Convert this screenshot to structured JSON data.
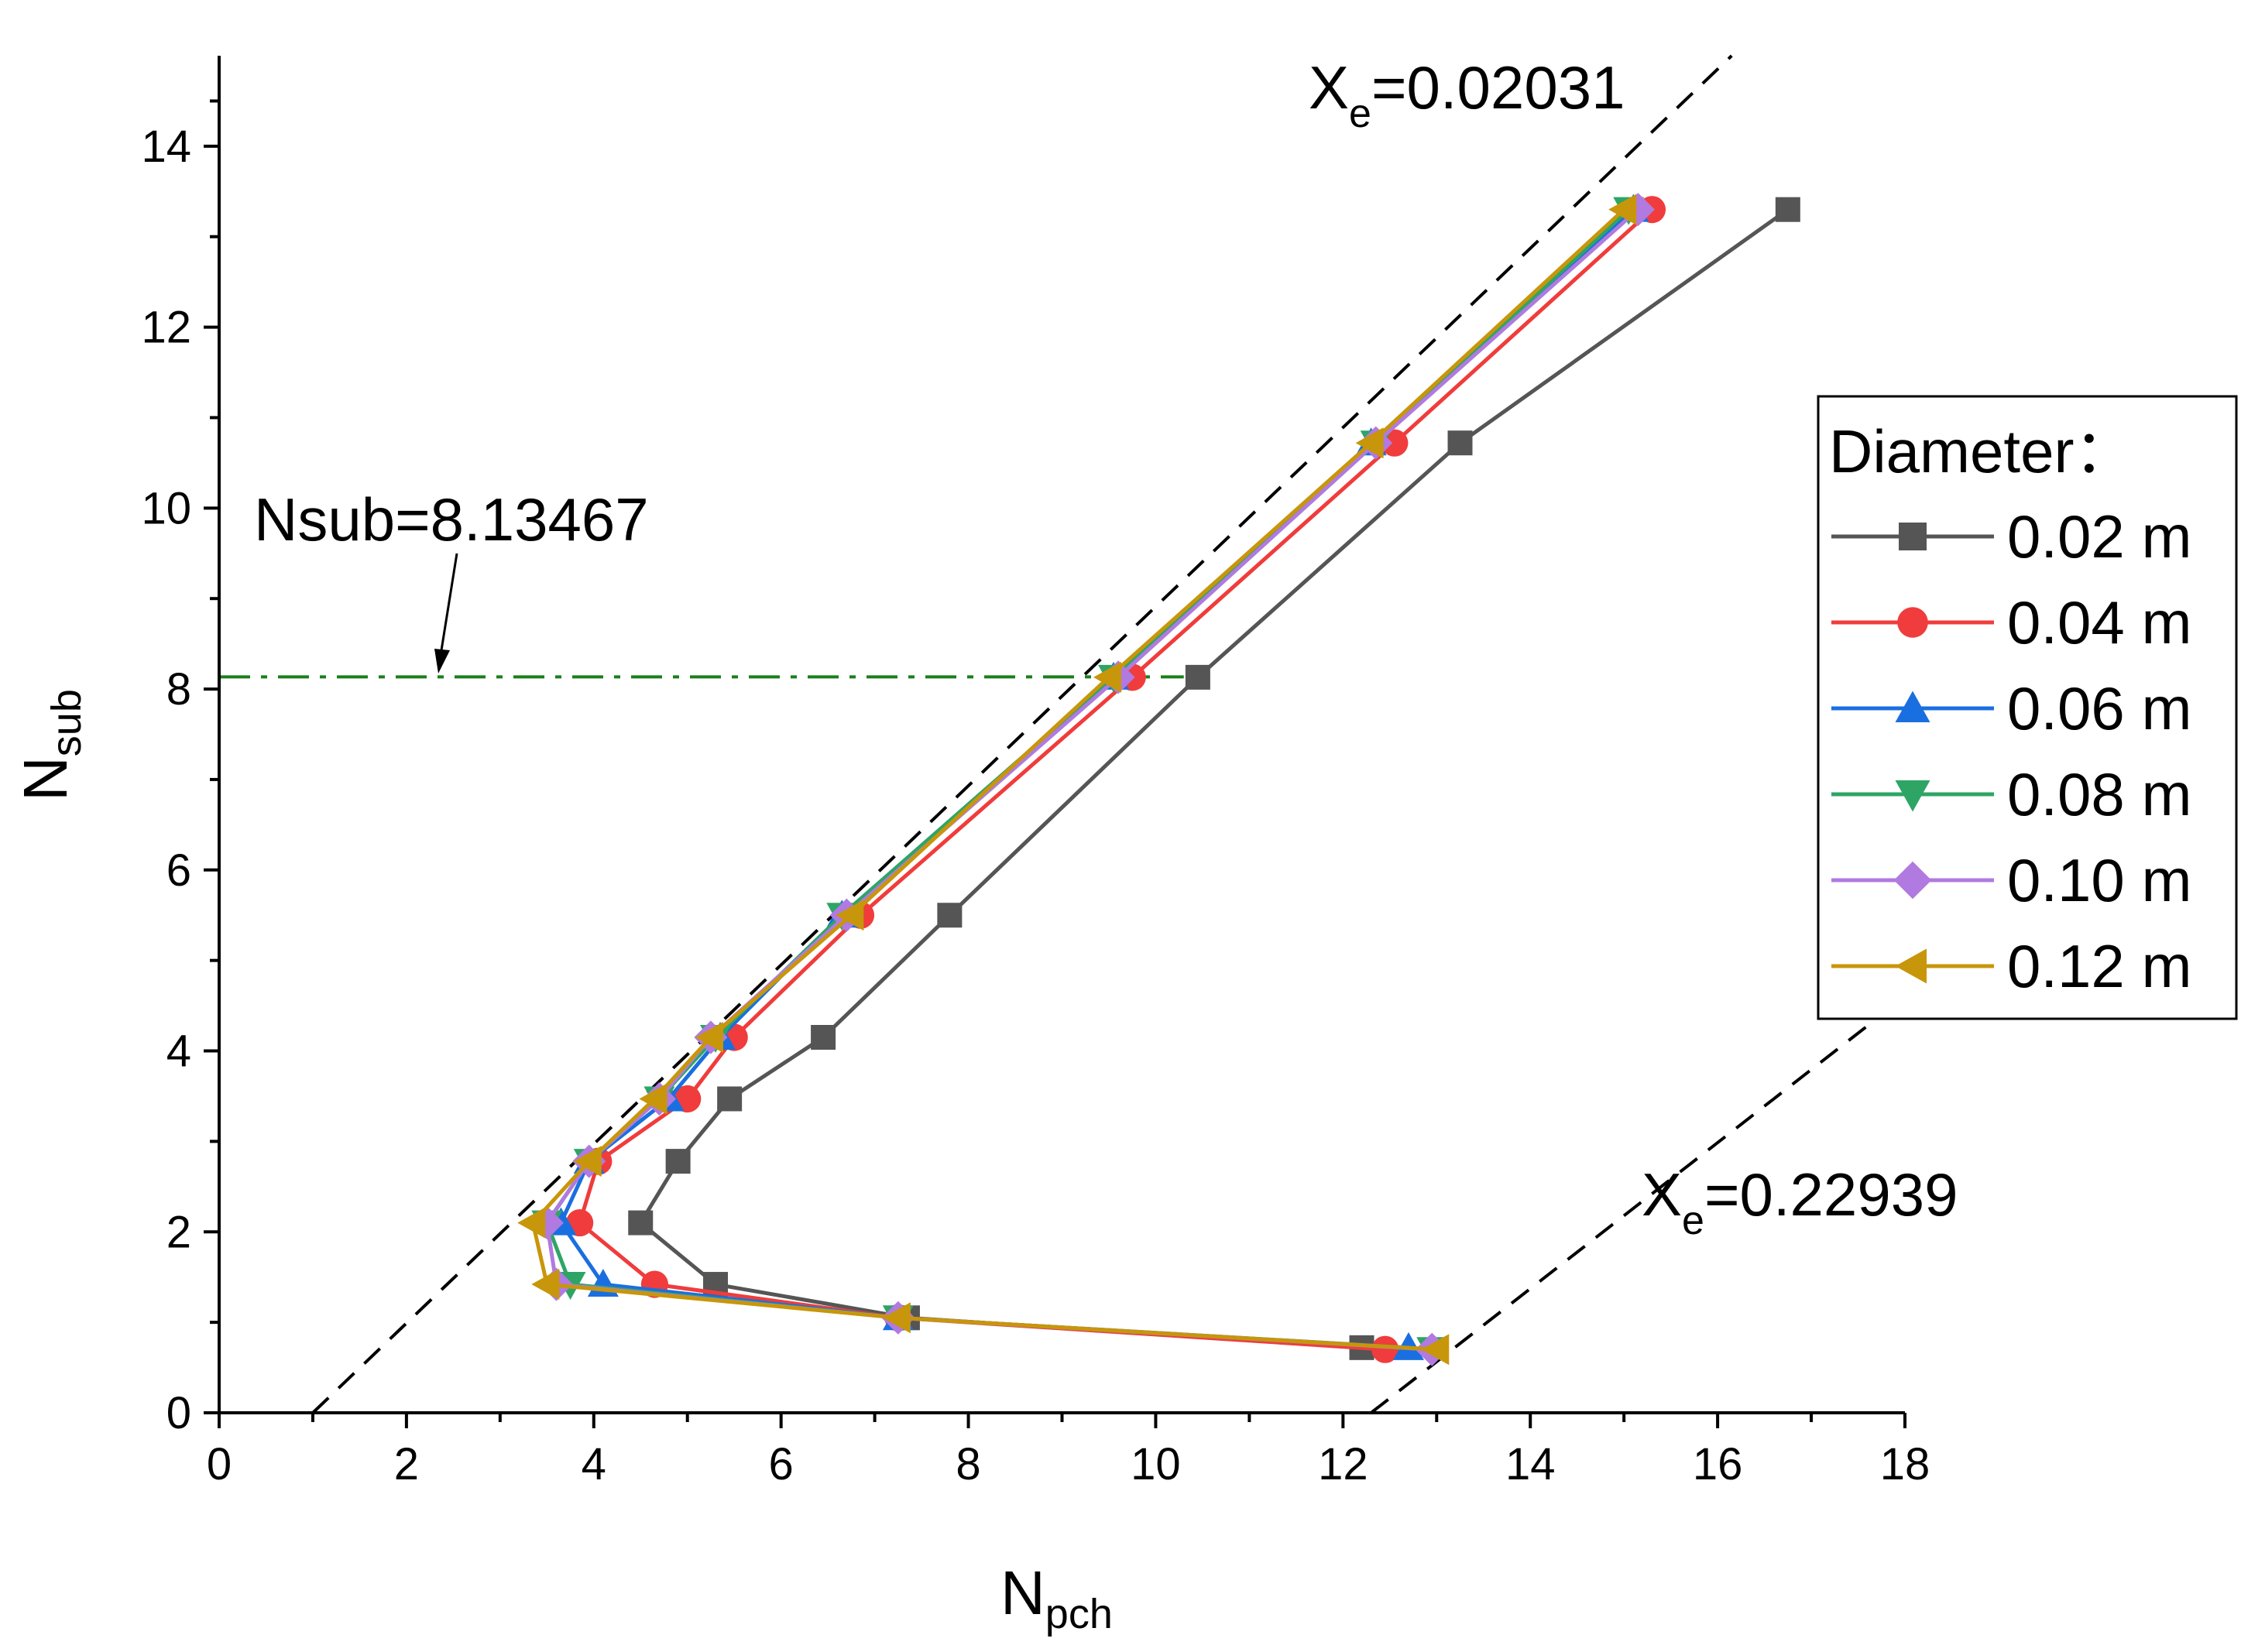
{
  "chart_data": {
    "type": "line",
    "xlabel": {
      "main": "N",
      "sub": "pch"
    },
    "ylabel": {
      "main": "N",
      "sub": "sub"
    },
    "xlim": [
      0,
      18
    ],
    "ylim": [
      0,
      15
    ],
    "xticks": [
      0,
      2,
      4,
      6,
      8,
      10,
      12,
      14,
      16,
      18
    ],
    "yticks": [
      0,
      2,
      4,
      6,
      8,
      10,
      12,
      14
    ],
    "legend": {
      "title": "Diameter：",
      "position": "right"
    },
    "series": [
      {
        "name": "0.02 m",
        "color": "#555555",
        "marker": "square",
        "x": [
          16.75,
          13.25,
          10.45,
          7.8,
          6.45,
          5.45,
          4.9,
          4.5,
          5.3,
          7.35,
          12.2
        ],
        "y": [
          13.3,
          10.72,
          8.13,
          5.5,
          4.15,
          3.47,
          2.78,
          2.1,
          1.42,
          1.05,
          0.72
        ]
      },
      {
        "name": "0.04 m",
        "color": "#f03c3c",
        "marker": "circle",
        "x": [
          15.3,
          12.55,
          9.75,
          6.85,
          5.5,
          5.0,
          4.05,
          3.85,
          4.65,
          7.25,
          12.45
        ],
        "y": [
          13.3,
          10.72,
          8.13,
          5.5,
          4.15,
          3.47,
          2.78,
          2.1,
          1.42,
          1.05,
          0.7
        ]
      },
      {
        "name": "0.06 m",
        "color": "#1a6fe0",
        "marker": "triangle-up",
        "x": [
          15.1,
          12.3,
          9.55,
          6.65,
          5.35,
          4.8,
          3.95,
          3.65,
          4.1,
          7.25,
          12.7
        ],
        "y": [
          13.3,
          10.72,
          8.13,
          5.5,
          4.15,
          3.47,
          2.78,
          2.1,
          1.42,
          1.05,
          0.72
        ]
      },
      {
        "name": "0.08 m",
        "color": "#2ea565",
        "marker": "triangle-down",
        "x": [
          15.05,
          12.35,
          9.55,
          6.65,
          5.3,
          4.7,
          3.95,
          3.5,
          3.75,
          7.25,
          12.95
        ],
        "y": [
          13.3,
          10.72,
          8.13,
          5.5,
          4.15,
          3.47,
          2.78,
          2.1,
          1.42,
          1.05,
          0.7
        ]
      },
      {
        "name": "0.10 m",
        "color": "#b07ae0",
        "marker": "diamond",
        "x": [
          15.15,
          12.35,
          9.6,
          6.7,
          5.25,
          4.7,
          3.95,
          3.5,
          3.6,
          7.25,
          12.95
        ],
        "y": [
          13.3,
          10.72,
          8.13,
          5.5,
          4.15,
          3.47,
          2.78,
          2.1,
          1.42,
          1.05,
          0.7
        ]
      },
      {
        "name": "0.12 m",
        "color": "#c8960a",
        "marker": "triangle-left",
        "x": [
          15.0,
          12.3,
          9.5,
          6.75,
          5.25,
          4.65,
          3.95,
          3.35,
          3.5,
          7.25,
          13.0
        ],
        "y": [
          13.3,
          10.72,
          8.13,
          5.5,
          4.15,
          3.47,
          2.78,
          2.1,
          1.42,
          1.05,
          0.7
        ]
      }
    ],
    "reference_lines": [
      {
        "name": "Xe-low",
        "style": "dashed",
        "color": "#000000",
        "x": [
          1.0,
          16.15
        ],
        "y": [
          0,
          15.0
        ]
      },
      {
        "name": "Xe-high",
        "style": "dashed",
        "color": "#000000",
        "x": [
          12.3,
          18.0
        ],
        "y": [
          0,
          4.6
        ]
      },
      {
        "name": "Nsub-line",
        "style": "dash-dot",
        "color": "#1a7f1a",
        "x": [
          0,
          10.3
        ],
        "y": [
          8.13467,
          8.13467
        ]
      }
    ],
    "annotations": [
      {
        "main": "X",
        "sub": "e",
        "value": "=0.02031"
      },
      {
        "main": "X",
        "sub": "e",
        "value": "=0.22939"
      },
      {
        "text": "Nsub=8.13467"
      }
    ]
  }
}
